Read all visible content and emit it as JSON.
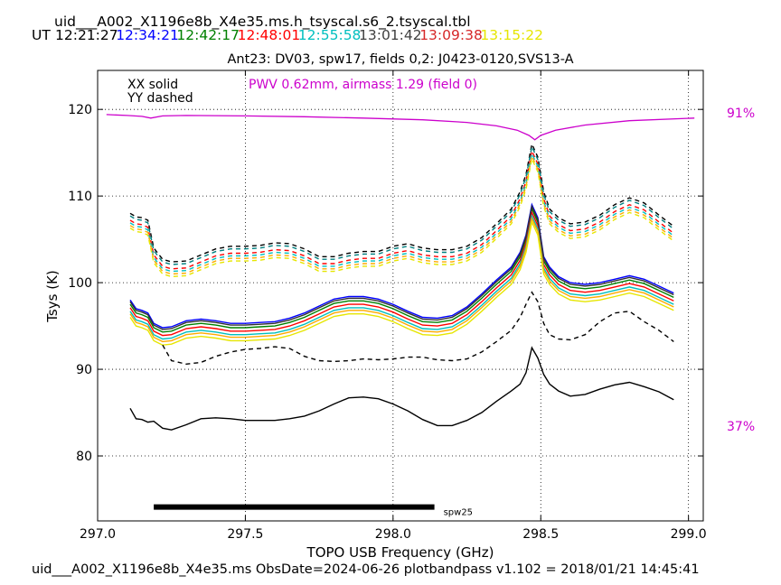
{
  "header": {
    "filename": "uid___A002_X1196e8b_X4e35.ms.h_tsyscal.s6_2.tsyscal.tbl",
    "ut_label": "UT",
    "times": [
      {
        "text": "12:21:27",
        "color": "#000000"
      },
      {
        "text": "12:34:21",
        "color": "#0000ff"
      },
      {
        "text": "12:42:17",
        "color": "#008000"
      },
      {
        "text": "12:48:01",
        "color": "#ff0000"
      },
      {
        "text": "12:55:58",
        "color": "#00bfbf"
      },
      {
        "text": "13:01:42",
        "color": "#404040"
      },
      {
        "text": "13:09:38",
        "color": "#d62728"
      },
      {
        "text": "13:15:22",
        "color": "#e6e600"
      }
    ]
  },
  "footer": "uid___A002_X1196e8b_X4e35.ms  ObsDate=2024-06-26   plotbandpass v1.102 = 2018/01/21 14:45:41",
  "chart_data": {
    "type": "line",
    "title": "Ant23: DV03,  spw17,  fields 0,2: J0423-0120,SVS13-A",
    "xlabel": "TOPO USB Frequency (GHz)",
    "ylabel": "Tsys (K)",
    "xlim": [
      297.0,
      299.05
    ],
    "ylim": [
      72.5,
      124.5
    ],
    "xticks": [
      297.0,
      297.5,
      298.0,
      298.5,
      299.0
    ],
    "xtick_labels": [
      "297.0",
      "297.5",
      "298.0",
      "298.5",
      "299.0"
    ],
    "yticks": [
      80,
      90,
      100,
      110,
      120
    ],
    "ytick_labels": [
      "80",
      "90",
      "100",
      "110",
      "120"
    ],
    "grid": true,
    "legend_text": [
      "XX solid",
      "YY dashed"
    ],
    "pwv_text": "PWV 0.62mm, airmass 1.29 (field 0)",
    "pwv_color": "#cc00cc",
    "atm_right_top": "91%",
    "atm_right_bottom": "37%",
    "spw_bar": {
      "x_start": 297.19,
      "x_end": 298.14,
      "y": 74.1,
      "label": "spw25"
    },
    "atm_curve": {
      "color": "#cc00cc",
      "x": [
        297.03,
        297.1,
        297.15,
        297.18,
        297.22,
        297.3,
        297.5,
        297.7,
        297.9,
        298.1,
        298.25,
        298.35,
        298.42,
        298.46,
        298.48,
        298.5,
        298.55,
        298.65,
        298.8,
        299.02
      ],
      "y": [
        119.4,
        119.3,
        119.2,
        119.0,
        119.25,
        119.3,
        119.25,
        119.15,
        119.0,
        118.8,
        118.5,
        118.1,
        117.6,
        117.0,
        116.5,
        117.0,
        117.6,
        118.2,
        118.7,
        119.0
      ]
    },
    "x": [
      297.11,
      297.13,
      297.15,
      297.17,
      297.19,
      297.22,
      297.25,
      297.3,
      297.35,
      297.4,
      297.45,
      297.5,
      297.55,
      297.6,
      297.65,
      297.7,
      297.75,
      297.8,
      297.85,
      297.9,
      297.95,
      298.0,
      298.05,
      298.1,
      298.15,
      298.2,
      298.25,
      298.3,
      298.35,
      298.4,
      298.43,
      298.45,
      298.47,
      298.49,
      298.51,
      298.53,
      298.56,
      298.6,
      298.65,
      298.7,
      298.75,
      298.8,
      298.85,
      298.9,
      298.95
    ],
    "base_xx": [
      98.0,
      97.0,
      96.8,
      96.5,
      95.3,
      94.8,
      94.9,
      95.6,
      95.8,
      95.6,
      95.3,
      95.3,
      95.4,
      95.5,
      95.9,
      96.5,
      97.3,
      98.1,
      98.4,
      98.4,
      98.1,
      97.5,
      96.7,
      96.0,
      95.9,
      96.2,
      97.2,
      98.7,
      100.3,
      101.8,
      103.5,
      105.5,
      109.0,
      107.5,
      103.0,
      101.8,
      100.7,
      100.0,
      99.8,
      100.0,
      100.4,
      100.8,
      100.4,
      99.6,
      98.8
    ],
    "base_yy": [
      108.0,
      107.6,
      107.5,
      107.2,
      104.0,
      102.7,
      102.4,
      102.5,
      103.2,
      103.9,
      104.2,
      104.2,
      104.3,
      104.6,
      104.5,
      103.9,
      103.0,
      103.0,
      103.4,
      103.6,
      103.6,
      104.2,
      104.5,
      104.0,
      103.8,
      103.8,
      104.2,
      105.2,
      106.8,
      108.5,
      110.5,
      112.5,
      116.0,
      114.5,
      110.5,
      108.5,
      107.5,
      106.8,
      107.0,
      107.8,
      109.0,
      109.8,
      109.2,
      107.8,
      106.5
    ],
    "series": [
      {
        "color": "#0000ff",
        "pol": "XX",
        "offset": 0.0,
        "alt": false
      },
      {
        "color": "#008000",
        "pol": "XX",
        "offset": -0.5,
        "alt": false
      },
      {
        "color": "#ff0000",
        "pol": "XX",
        "offset": -0.9,
        "alt": false
      },
      {
        "color": "#00bfbf",
        "pol": "XX",
        "offset": -1.3,
        "alt": false
      },
      {
        "color": "#ffaa00",
        "pol": "XX",
        "offset": -1.6,
        "alt": false
      },
      {
        "color": "#e6e600",
        "pol": "XX",
        "offset": -2.0,
        "alt": false
      },
      {
        "color": "#303030",
        "pol": "XX",
        "offset": -0.2,
        "alt": false
      },
      {
        "color": "#000000",
        "pol": "XX",
        "offset": 0,
        "alt": true
      },
      {
        "color": "#000000",
        "pol": "YY",
        "offset": 0.0,
        "alt": false
      },
      {
        "color": "#008080",
        "pol": "YY",
        "offset": -0.3,
        "alt": false
      },
      {
        "color": "#ff0000",
        "pol": "YY",
        "offset": -0.8,
        "alt": false
      },
      {
        "color": "#00bfbf",
        "pol": "YY",
        "offset": -1.1,
        "alt": false
      },
      {
        "color": "#ffaa00",
        "pol": "YY",
        "offset": -1.4,
        "alt": false
      },
      {
        "color": "#e6e600",
        "pol": "YY",
        "offset": -1.7,
        "alt": false
      },
      {
        "color": "#000000",
        "pol": "YY",
        "offset": 0,
        "alt": true
      }
    ],
    "alt_xx": [
      85.5,
      84.3,
      84.2,
      83.9,
      84.0,
      83.2,
      83.0,
      83.6,
      84.3,
      84.4,
      84.3,
      84.1,
      84.1,
      84.1,
      84.3,
      84.6,
      85.2,
      86.0,
      86.7,
      86.8,
      86.6,
      86.0,
      85.2,
      84.2,
      83.5,
      83.5,
      84.1,
      85.0,
      86.3,
      87.5,
      88.3,
      89.6,
      92.5,
      91.3,
      89.4,
      88.3,
      87.5,
      86.9,
      87.1,
      87.7,
      88.2,
      88.5,
      88.0,
      87.4,
      86.5
    ],
    "alt_yy": [
      null,
      null,
      null,
      null,
      null,
      92.8,
      91.0,
      90.6,
      90.8,
      91.5,
      92.0,
      92.3,
      92.4,
      92.6,
      92.4,
      91.5,
      91.0,
      90.9,
      91.0,
      91.2,
      91.1,
      91.2,
      91.4,
      91.4,
      91.1,
      91.0,
      91.2,
      92.0,
      93.2,
      94.5,
      96.0,
      97.5,
      98.9,
      97.8,
      95.3,
      94.0,
      93.5,
      93.4,
      94.0,
      95.5,
      96.5,
      96.7,
      95.5,
      94.5,
      93.2
    ]
  }
}
